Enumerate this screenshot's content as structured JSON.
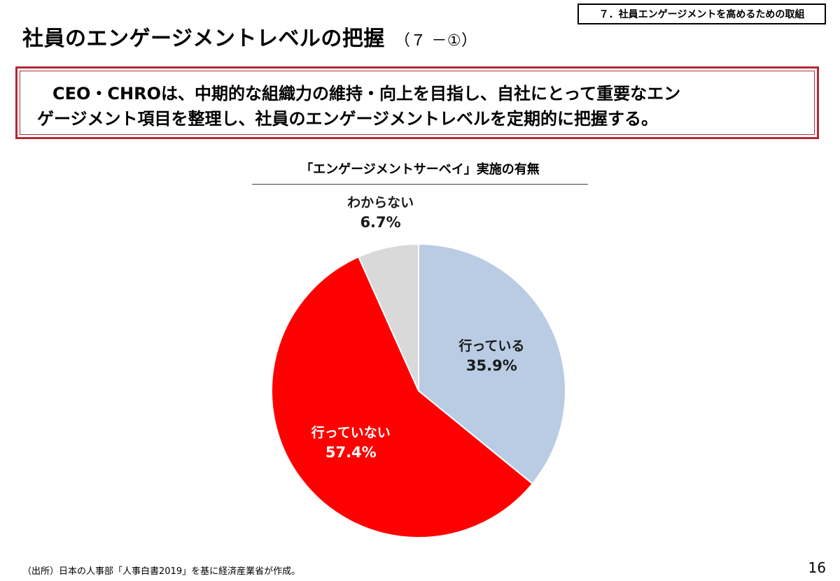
{
  "section_tag": "７．社員エンゲージメントを高めるための取組",
  "title": "社員のエンゲージメントレベルの把握",
  "title_suffix": "（７ －①）",
  "message_lines": [
    "CEO・CHROは、中期的な組織力の維持・向上を目指し、自社にとって重要なエン",
    "ゲージメント項目を整理し、社員のエンゲージメントレベルを定期的に把握する。"
  ],
  "chart_data": {
    "type": "pie",
    "title": "「エンゲージメントサーベイ」実施の有無",
    "slices": [
      {
        "label": "行っている",
        "value": 35.9,
        "display": "35.9%",
        "color": "#b9cce4"
      },
      {
        "label": "行っていない",
        "value": 57.4,
        "display": "57.4%",
        "color": "#ff0000"
      },
      {
        "label": "わからない",
        "value": 6.7,
        "display": "6.7%",
        "color": "#d9d9d9"
      }
    ],
    "start_angle": "12 o'clock",
    "direction": "clockwise"
  },
  "source_note": "（出所）日本の人事部「人事白書2019」を基に経済産業省が作成。",
  "page_number": "16"
}
